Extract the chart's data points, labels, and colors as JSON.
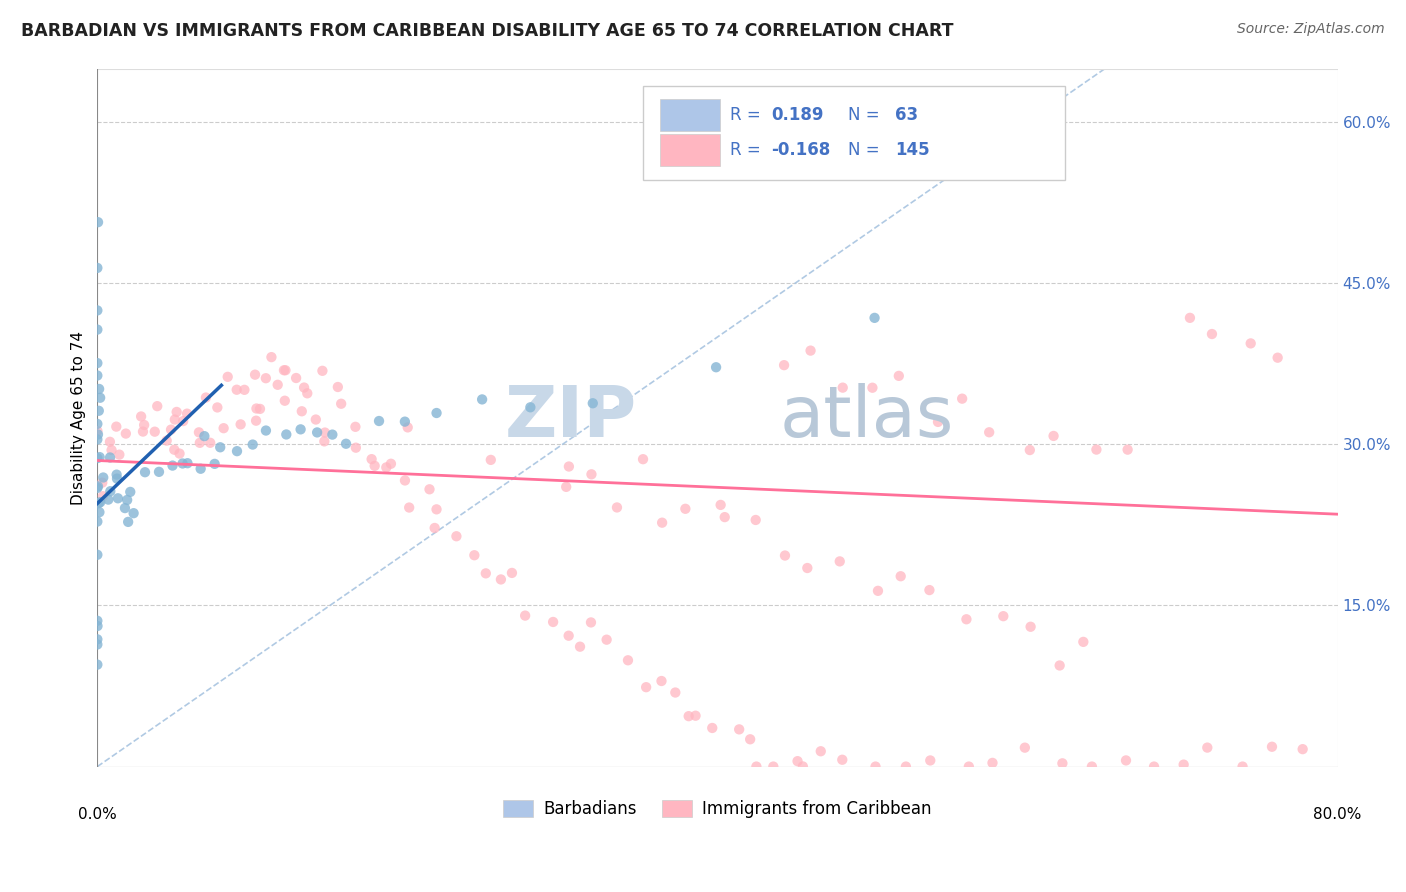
{
  "title": "BARBADIAN VS IMMIGRANTS FROM CARIBBEAN DISABILITY AGE 65 TO 74 CORRELATION CHART",
  "source": "Source: ZipAtlas.com",
  "ylabel": "Disability Age 65 to 74",
  "xlim": [
    0.0,
    0.8
  ],
  "ylim": [
    0.0,
    0.65
  ],
  "y_ticks_right": [
    0.15,
    0.3,
    0.45,
    0.6
  ],
  "y_tick_labels_right": [
    "15.0%",
    "30.0%",
    "45.0%",
    "60.0%"
  ],
  "blue_scatter_x": [
    0.0,
    0.0,
    0.0,
    0.0,
    0.0,
    0.0,
    0.0,
    0.0,
    0.0,
    0.0,
    0.0,
    0.0,
    0.0,
    0.0,
    0.0,
    0.0,
    0.0,
    0.0,
    0.0,
    0.0,
    0.0,
    0.0,
    0.0,
    0.0,
    0.0,
    0.0,
    0.005,
    0.007,
    0.008,
    0.01,
    0.012,
    0.014,
    0.015,
    0.016,
    0.018,
    0.02,
    0.02,
    0.025,
    0.03,
    0.04,
    0.05,
    0.055,
    0.06,
    0.065,
    0.07,
    0.075,
    0.08,
    0.09,
    0.1,
    0.11,
    0.12,
    0.13,
    0.14,
    0.15,
    0.16,
    0.18,
    0.2,
    0.22,
    0.25,
    0.28,
    0.32,
    0.4,
    0.5
  ],
  "blue_scatter_y": [
    0.38,
    0.35,
    0.33,
    0.32,
    0.31,
    0.3,
    0.29,
    0.28,
    0.27,
    0.26,
    0.25,
    0.24,
    0.23,
    0.22,
    0.21,
    0.14,
    0.13,
    0.12,
    0.11,
    0.1,
    0.52,
    0.47,
    0.43,
    0.4,
    0.36,
    0.34,
    0.27,
    0.26,
    0.25,
    0.28,
    0.27,
    0.26,
    0.25,
    0.24,
    0.23,
    0.27,
    0.26,
    0.25,
    0.27,
    0.28,
    0.28,
    0.27,
    0.29,
    0.28,
    0.3,
    0.29,
    0.31,
    0.3,
    0.31,
    0.3,
    0.3,
    0.31,
    0.3,
    0.3,
    0.31,
    0.31,
    0.32,
    0.32,
    0.33,
    0.34,
    0.35,
    0.38,
    0.42
  ],
  "pink_scatter_x": [
    0.0,
    0.0,
    0.005,
    0.008,
    0.01,
    0.015,
    0.018,
    0.02,
    0.025,
    0.03,
    0.03,
    0.035,
    0.04,
    0.04,
    0.045,
    0.05,
    0.05,
    0.055,
    0.06,
    0.06,
    0.065,
    0.07,
    0.07,
    0.075,
    0.08,
    0.08,
    0.085,
    0.09,
    0.09,
    0.095,
    0.1,
    0.1,
    0.105,
    0.11,
    0.11,
    0.115,
    0.12,
    0.12,
    0.125,
    0.13,
    0.13,
    0.135,
    0.14,
    0.14,
    0.145,
    0.15,
    0.155,
    0.16,
    0.165,
    0.17,
    0.175,
    0.18,
    0.185,
    0.19,
    0.2,
    0.205,
    0.21,
    0.215,
    0.22,
    0.23,
    0.24,
    0.25,
    0.26,
    0.27,
    0.28,
    0.29,
    0.3,
    0.31,
    0.32,
    0.33,
    0.34,
    0.35,
    0.36,
    0.37,
    0.38,
    0.39,
    0.4,
    0.41,
    0.42,
    0.43,
    0.44,
    0.45,
    0.46,
    0.47,
    0.48,
    0.5,
    0.52,
    0.54,
    0.56,
    0.58,
    0.6,
    0.62,
    0.64,
    0.66,
    0.68,
    0.7,
    0.72,
    0.74,
    0.76,
    0.78,
    0.7,
    0.72,
    0.74,
    0.76,
    0.44,
    0.46,
    0.48,
    0.5,
    0.52,
    0.54,
    0.56,
    0.58,
    0.6,
    0.62,
    0.64,
    0.66,
    0.3,
    0.32,
    0.34,
    0.36,
    0.38,
    0.4,
    0.42,
    0.44,
    0.46,
    0.48,
    0.5,
    0.52,
    0.54,
    0.56,
    0.58,
    0.6,
    0.62,
    0.64,
    0.05,
    0.1,
    0.15,
    0.2,
    0.25,
    0.3,
    0.35,
    0.4
  ],
  "pink_scatter_y": [
    0.27,
    0.26,
    0.3,
    0.29,
    0.28,
    0.3,
    0.29,
    0.31,
    0.3,
    0.32,
    0.31,
    0.3,
    0.32,
    0.31,
    0.3,
    0.33,
    0.32,
    0.31,
    0.33,
    0.32,
    0.31,
    0.34,
    0.33,
    0.32,
    0.35,
    0.34,
    0.33,
    0.35,
    0.34,
    0.33,
    0.36,
    0.35,
    0.34,
    0.38,
    0.36,
    0.35,
    0.36,
    0.35,
    0.34,
    0.36,
    0.35,
    0.34,
    0.35,
    0.34,
    0.33,
    0.35,
    0.34,
    0.33,
    0.32,
    0.31,
    0.3,
    0.29,
    0.28,
    0.27,
    0.26,
    0.25,
    0.24,
    0.23,
    0.22,
    0.21,
    0.2,
    0.19,
    0.18,
    0.17,
    0.16,
    0.15,
    0.14,
    0.13,
    0.12,
    0.11,
    0.1,
    0.09,
    0.08,
    0.07,
    0.06,
    0.05,
    0.04,
    0.03,
    0.02,
    0.01,
    0.0,
    0.0,
    0.0,
    0.0,
    0.0,
    0.0,
    0.0,
    0.0,
    0.0,
    0.0,
    0.0,
    0.0,
    0.0,
    0.0,
    0.0,
    0.0,
    0.0,
    0.0,
    0.0,
    0.0,
    0.43,
    0.42,
    0.41,
    0.4,
    0.39,
    0.38,
    0.37,
    0.36,
    0.35,
    0.34,
    0.33,
    0.32,
    0.31,
    0.3,
    0.29,
    0.28,
    0.27,
    0.26,
    0.25,
    0.24,
    0.23,
    0.22,
    0.21,
    0.2,
    0.19,
    0.18,
    0.17,
    0.16,
    0.15,
    0.14,
    0.13,
    0.12,
    0.11,
    0.1,
    0.33,
    0.32,
    0.31,
    0.3,
    0.29,
    0.28,
    0.27,
    0.26
  ],
  "blue_line_x": [
    0.0,
    0.08
  ],
  "blue_line_y": [
    0.245,
    0.355
  ],
  "pink_line_x": [
    0.0,
    0.8
  ],
  "pink_line_y": [
    0.285,
    0.235
  ],
  "diagonal_color": "#a8c4e0",
  "blue_dot_color": "#85b5d4",
  "pink_dot_color": "#ffb6c1",
  "blue_line_color": "#2060b0",
  "pink_line_color": "#ff7099",
  "watermark_zip_color": "#c8d8e8",
  "watermark_atlas_color": "#b8c8d8",
  "legend_text_color": "#4472c4",
  "legend_label_color": "#333333"
}
